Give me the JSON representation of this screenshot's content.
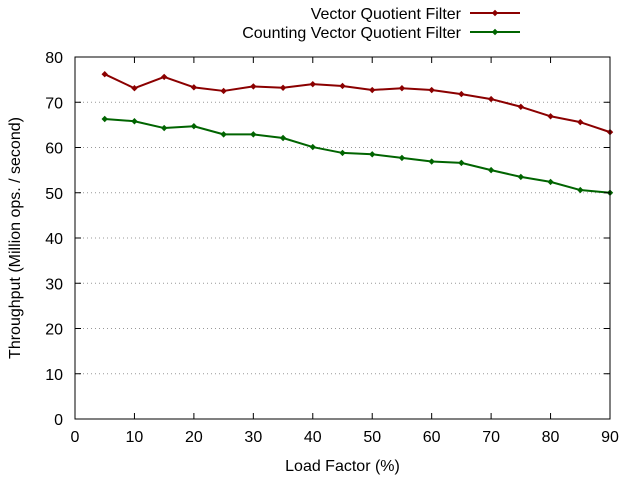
{
  "chart_data": {
    "type": "line",
    "xlabel": "Load Factor (%)",
    "ylabel": "Throughput (Million ops. / second)",
    "xlim": [
      0,
      90
    ],
    "ylim": [
      0,
      80
    ],
    "xticks": [
      0,
      10,
      20,
      30,
      40,
      50,
      60,
      70,
      80,
      90
    ],
    "yticks": [
      0,
      10,
      20,
      30,
      40,
      50,
      60,
      70,
      80
    ],
    "grid": "horizontal-dotted",
    "legend_position": "top-right",
    "x": [
      5,
      10,
      15,
      20,
      25,
      30,
      35,
      40,
      45,
      50,
      55,
      60,
      65,
      70,
      75,
      80,
      85,
      90
    ],
    "series": [
      {
        "name": "Vector Quotient Filter",
        "color": "#8b0000",
        "values": [
          76.2,
          73.1,
          75.6,
          73.3,
          72.5,
          73.5,
          73.2,
          74.0,
          73.6,
          72.7,
          73.1,
          72.7,
          71.8,
          70.7,
          69.0,
          66.9,
          65.6,
          63.4
        ]
      },
      {
        "name": "Counting Vector Quotient Filter",
        "color": "#006400",
        "values": [
          66.3,
          65.8,
          64.3,
          64.7,
          62.9,
          62.9,
          62.1,
          60.1,
          58.8,
          58.5,
          57.7,
          56.9,
          56.6,
          55.0,
          53.5,
          52.4,
          50.6,
          50.0
        ]
      }
    ]
  }
}
